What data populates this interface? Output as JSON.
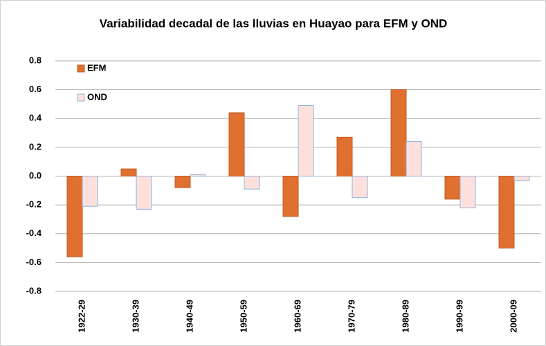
{
  "chart_data": {
    "type": "bar",
    "title": "Variabilidad decadal de las lluvias en Huayao para EFM y OND",
    "categories": [
      "1922-29",
      "1930-39",
      "1940-49",
      "1950-59",
      "1960-69",
      "1970-79",
      "1980-89",
      "1990-99",
      "2000-09"
    ],
    "series": [
      {
        "name": "EFM",
        "color": "#e07030",
        "values": [
          -0.56,
          0.05,
          -0.08,
          0.44,
          -0.28,
          0.27,
          0.6,
          -0.16,
          -0.5
        ]
      },
      {
        "name": "OND",
        "color": "#fde0dc",
        "values": [
          -0.21,
          -0.23,
          0.01,
          -0.09,
          0.49,
          -0.15,
          0.24,
          -0.22,
          -0.03
        ]
      }
    ],
    "ylim": [
      -0.8,
      0.8
    ],
    "yticks": [
      -0.8,
      -0.6,
      -0.4,
      -0.2,
      {
        "value": 0,
        "label": "0.0"
      },
      0.2,
      0.4,
      0.6,
      0.8
    ],
    "grid": true,
    "legend": "top-left"
  }
}
